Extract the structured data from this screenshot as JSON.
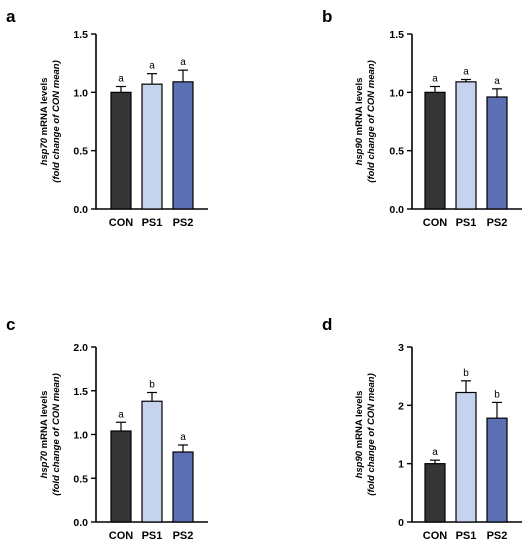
{
  "colors": {
    "CON": "#353535",
    "PS1": "#c5d3ee",
    "PS2": "#5b70b3",
    "axis": "#000000"
  },
  "chart_data": [
    {
      "panel": "a",
      "type": "bar",
      "categories": [
        "CON",
        "PS1",
        "PS2"
      ],
      "values": [
        1.0,
        1.07,
        1.09
      ],
      "errors": [
        0.05,
        0.09,
        0.1
      ],
      "significance": [
        "a",
        "a",
        "a"
      ],
      "ylabel_italic": "hsp70",
      "ylabel_rest": " mRNA levels",
      "ylabel_line2": "(fold change of CON mean)",
      "ylim": [
        0,
        1.5
      ],
      "yticks": [
        "0.0",
        "0.5",
        "1.0",
        "1.5"
      ]
    },
    {
      "panel": "b",
      "type": "bar",
      "categories": [
        "CON",
        "PS1",
        "PS2"
      ],
      "values": [
        1.0,
        1.09,
        0.96
      ],
      "errors": [
        0.05,
        0.02,
        0.07
      ],
      "significance": [
        "a",
        "a",
        "a"
      ],
      "ylabel_italic": "hsp90",
      "ylabel_rest": " mRNA levels",
      "ylabel_line2": "(fold change of CON mean)",
      "ylim": [
        0,
        1.5
      ],
      "yticks": [
        "0.0",
        "0.5",
        "1.0",
        "1.5"
      ]
    },
    {
      "panel": "c",
      "type": "bar",
      "categories": [
        "CON",
        "PS1",
        "PS2"
      ],
      "values": [
        1.04,
        1.38,
        0.8
      ],
      "errors": [
        0.1,
        0.1,
        0.08
      ],
      "significance": [
        "a",
        "b",
        "a"
      ],
      "ylabel_italic": "hsp70",
      "ylabel_rest": " mRNA levels",
      "ylabel_line2": "(fold change of CON mean)",
      "ylim": [
        0,
        2.0
      ],
      "yticks": [
        "0.0",
        "0.5",
        "1.0",
        "1.5",
        "2.0"
      ]
    },
    {
      "panel": "d",
      "type": "bar",
      "categories": [
        "CON",
        "PS1",
        "PS2"
      ],
      "values": [
        1.0,
        2.22,
        1.78
      ],
      "errors": [
        0.06,
        0.2,
        0.27
      ],
      "significance": [
        "a",
        "b",
        "b"
      ],
      "ylabel_italic": "hsp90",
      "ylabel_rest": " mRNA levels",
      "ylabel_line2": "(fold change of CON mean)",
      "ylim": [
        0,
        3
      ],
      "yticks": [
        "0",
        "1",
        "2",
        "3"
      ]
    }
  ]
}
